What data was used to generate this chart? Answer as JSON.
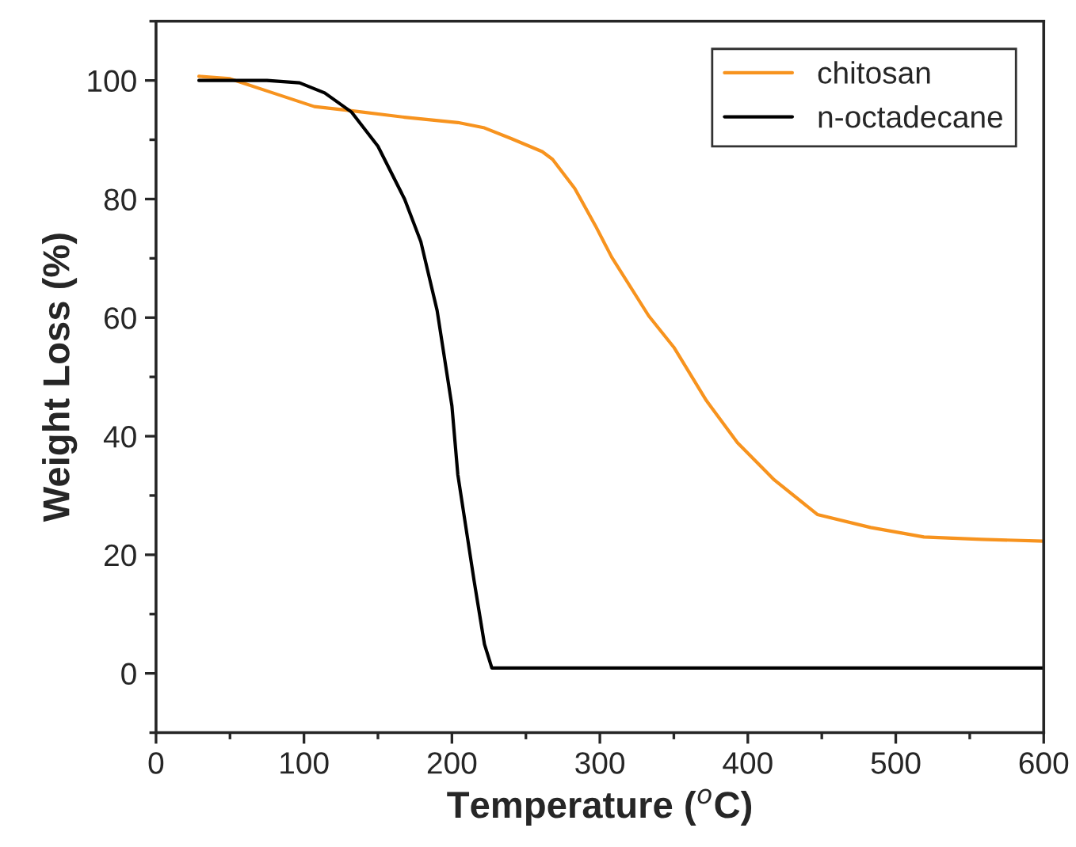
{
  "chart_data": {
    "type": "line",
    "xlabel": "Temperature ($^{o}$C)",
    "ylabel": "Weight Loss (%)",
    "xlim": [
      0,
      600
    ],
    "xticks": [
      0,
      100,
      200,
      300,
      400,
      500,
      600
    ],
    "ylim": [
      -10,
      110
    ],
    "yticks": [
      0,
      20,
      40,
      60,
      80,
      100
    ],
    "grid": false,
    "legend": "top right",
    "marker": "none",
    "line_style": "solid",
    "series": [
      {
        "name": "chitosan",
        "color": "#f7931e",
        "x": [
          29,
          50,
          79,
          107,
          132,
          168,
          204,
          222,
          240,
          261,
          268,
          283,
          297,
          308,
          333,
          350,
          372,
          393,
          418,
          447,
          483,
          519,
          558,
          600
        ],
        "values": [
          100.7,
          100.3,
          97.9,
          95.6,
          94.9,
          93.8,
          92.9,
          92.0,
          90.2,
          88.0,
          86.7,
          81.8,
          75.5,
          70.2,
          60.3,
          55.0,
          46.0,
          38.9,
          32.6,
          26.8,
          24.6,
          23.0,
          22.6,
          22.3
        ]
      },
      {
        "name": "n-octadecane",
        "color": "#000000",
        "x": [
          29,
          75,
          97,
          114,
          132,
          150,
          168,
          179,
          190,
          200,
          204,
          215,
          222,
          227,
          600
        ],
        "values": [
          100,
          100,
          99.6,
          97.9,
          94.7,
          88.9,
          80.0,
          72.8,
          61.2,
          45.1,
          33.5,
          15.6,
          4.9,
          0.9,
          0.9
        ]
      }
    ]
  }
}
